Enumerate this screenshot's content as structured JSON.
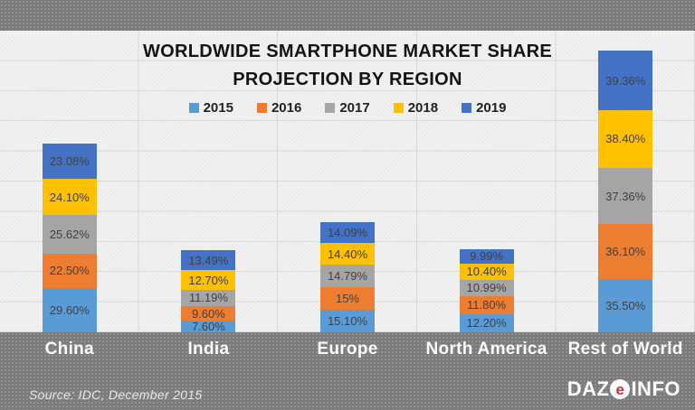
{
  "header": {
    "title_line1": "WORLDWIDE SMARTPHONE MARKET SHARE",
    "title_line2": "PROJECTION BY REGION"
  },
  "chart_data": {
    "type": "bar",
    "stacked": true,
    "title": "WORLDWIDE SMARTPHONE MARKET SHARE PROJECTION BY REGION",
    "categories": [
      "China",
      "India",
      "Europe",
      "North America",
      "Rest of World"
    ],
    "series": [
      {
        "name": "2015",
        "color": "#5B9BD5",
        "values": [
          29.6,
          7.6,
          15.1,
          12.2,
          35.5
        ],
        "labels": [
          "29.60%",
          "7.60%",
          "15.10%",
          "12.20%",
          "35.50%"
        ]
      },
      {
        "name": "2016",
        "color": "#ED7D31",
        "values": [
          22.5,
          9.6,
          15.0,
          11.8,
          36.1
        ],
        "labels": [
          "22.50%",
          "9.60%",
          "15%",
          "11.80%",
          "36.10%"
        ]
      },
      {
        "name": "2017",
        "color": "#A5A5A5",
        "values": [
          25.62,
          11.19,
          14.79,
          10.99,
          37.36
        ],
        "labels": [
          "25.62%",
          "11.19%",
          "14.79%",
          "10.99%",
          "37.36%"
        ]
      },
      {
        "name": "2018",
        "color": "#FFC000",
        "values": [
          24.1,
          12.7,
          14.4,
          10.4,
          38.4
        ],
        "labels": [
          "24.10%",
          "12.70%",
          "14.40%",
          "10.40%",
          "38.40%"
        ]
      },
      {
        "name": "2019",
        "color": "#4472C4",
        "values": [
          23.08,
          13.49,
          14.09,
          9.99,
          39.36
        ],
        "labels": [
          "23.08%",
          "13.49%",
          "14.09%",
          "9.99%",
          "39.36%"
        ]
      }
    ],
    "ylim": [
      0,
      200
    ],
    "grid": true,
    "legend_position": "top",
    "label_color": "#404040"
  },
  "footer": {
    "source": "Source: IDC, December 2015",
    "logo": {
      "part1": "DAZ",
      "e": "e",
      "part2": "INFO"
    }
  }
}
